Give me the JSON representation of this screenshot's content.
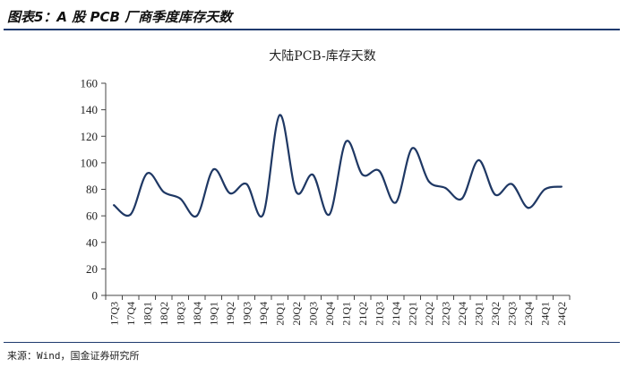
{
  "header": {
    "caption": "图表5：A 股 PCB 厂商季度库存天数"
  },
  "footer": {
    "source": "来源：Wind，国金证券研究所"
  },
  "chart_data": {
    "type": "line",
    "title": "大陆PCB-库存天数",
    "xlabel": "",
    "ylabel": "",
    "ylim": [
      0,
      160
    ],
    "yticks": [
      0,
      20,
      40,
      60,
      80,
      100,
      120,
      140,
      160
    ],
    "grid": false,
    "line_color": "#1f3864",
    "categories": [
      "17Q3",
      "17Q4",
      "18Q1",
      "18Q2",
      "18Q3",
      "18Q4",
      "19Q1",
      "19Q2",
      "19Q3",
      "19Q4",
      "20Q1",
      "20Q2",
      "20Q3",
      "20Q4",
      "21Q1",
      "21Q2",
      "21Q3",
      "21Q4",
      "22Q1",
      "22Q2",
      "22Q3",
      "22Q4",
      "23Q1",
      "23Q2",
      "23Q3",
      "23Q4",
      "24Q1",
      "24Q2"
    ],
    "series": [
      {
        "values": [
          68,
          61,
          92,
          78,
          73,
          60,
          95,
          77,
          84,
          61,
          136,
          78,
          91,
          61,
          116,
          91,
          94,
          70,
          111,
          86,
          81,
          73,
          102,
          76,
          84,
          66,
          80,
          82
        ]
      }
    ]
  }
}
